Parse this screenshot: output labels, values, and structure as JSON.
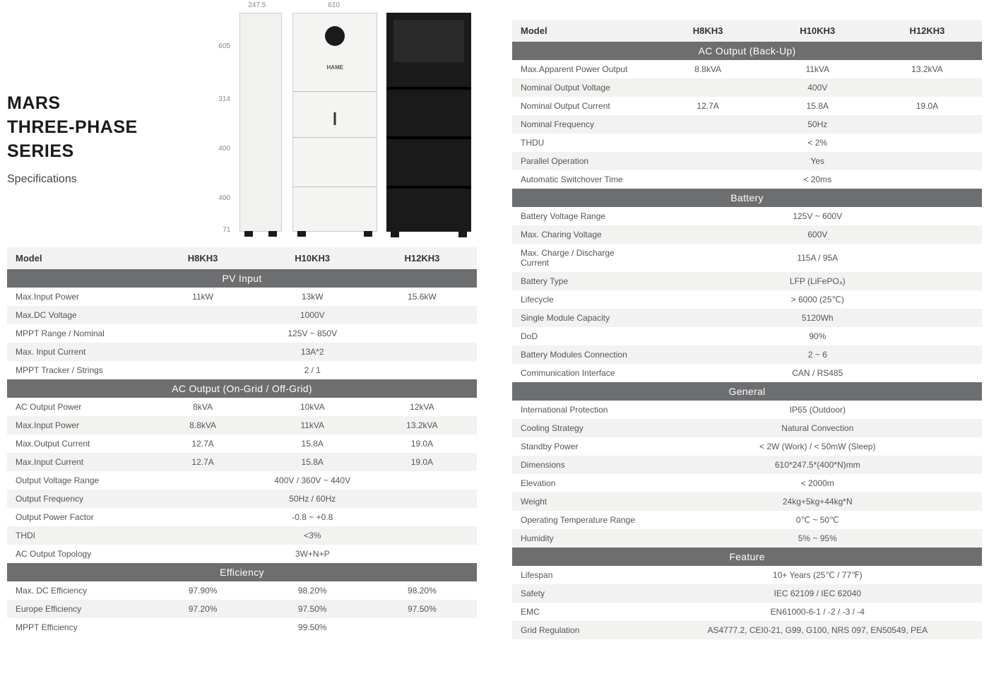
{
  "title": {
    "line1": "MARS",
    "line2": "THREE-PHASE SERIES",
    "sub": "Specifications"
  },
  "dimensions": {
    "width_side": "247.5",
    "width_front": "610",
    "h1": "605",
    "h2": "314",
    "h3": "400",
    "h4": "400",
    "h5": "71"
  },
  "models": [
    "H8KH3",
    "H10KH3",
    "H12KH3"
  ],
  "colors": {
    "section_bg": "#6d6e70",
    "alt_row": "#f2f2f1",
    "text": "#555555"
  },
  "table_left": {
    "sections": [
      {
        "title": "PV Input",
        "rows": [
          {
            "label": "Max.Input Power",
            "v": [
              "11kW",
              "13kW",
              "15.6kW"
            ],
            "alt": false
          },
          {
            "label": "Max.DC Voltage",
            "span": "1000V",
            "alt": true
          },
          {
            "label": "MPPT Range / Nominal",
            "span": "125V ~ 850V",
            "alt": false
          },
          {
            "label": "Max. Input Current",
            "span": "13A*2",
            "alt": true
          },
          {
            "label": "MPPT Tracker / Strings",
            "span": "2 / 1",
            "alt": false
          }
        ]
      },
      {
        "title": "AC Output (On-Grid / Off-Grid)",
        "rows": [
          {
            "label": "AC Output Power",
            "v": [
              "8kVA",
              "10kVA",
              "12kVA"
            ],
            "alt": false
          },
          {
            "label": "Max.Input Power",
            "v": [
              "8.8kVA",
              "11kVA",
              "13.2kVA"
            ],
            "alt": true
          },
          {
            "label": "Max.Output Current",
            "v": [
              "12.7A",
              "15.8A",
              "19.0A"
            ],
            "alt": false
          },
          {
            "label": "Max.Input Current",
            "v": [
              "12.7A",
              "15.8A",
              "19.0A"
            ],
            "alt": true
          },
          {
            "label": "Output Voltage Range",
            "span": "400V / 360V ~ 440V",
            "alt": false
          },
          {
            "label": "Output Frequency",
            "span": "50Hz / 60Hz",
            "alt": true
          },
          {
            "label": "Output Power Factor",
            "span": "-0.8 ~ +0.8",
            "alt": false
          },
          {
            "label": "THDI",
            "span": "<3%",
            "alt": true
          },
          {
            "label": "AC Output Topology",
            "span": "3W+N+P",
            "alt": false
          }
        ]
      },
      {
        "title": "Efficiency",
        "rows": [
          {
            "label": "Max. DC Efficiency",
            "v": [
              "97.90%",
              "98.20%",
              "98.20%"
            ],
            "alt": false
          },
          {
            "label": "Europe Efficiency",
            "v": [
              "97.20%",
              "97.50%",
              "97.50%"
            ],
            "alt": true
          },
          {
            "label": "MPPT Efficiency",
            "span": "99.50%",
            "alt": false
          }
        ]
      }
    ]
  },
  "table_right": {
    "sections": [
      {
        "title": "AC Output (Back-Up)",
        "rows": [
          {
            "label": "Max.Apparent Power Output",
            "v": [
              "8.8kVA",
              "11kVA",
              "13.2kVA"
            ],
            "alt": false
          },
          {
            "label": "Nominal Output Voltage",
            "span": "400V",
            "alt": true
          },
          {
            "label": "Nominal Output Current",
            "v": [
              "12.7A",
              "15.8A",
              "19.0A"
            ],
            "alt": false
          },
          {
            "label": "Nominal Frequency",
            "span": "50Hz",
            "alt": true
          },
          {
            "label": "THDU",
            "span": "< 2%",
            "alt": false
          },
          {
            "label": "Parallel Operation",
            "span": "Yes",
            "alt": true
          },
          {
            "label": "Automatic Switchover Time",
            "span": "< 20ms",
            "alt": false
          }
        ]
      },
      {
        "title": "Battery",
        "rows": [
          {
            "label": "Battery Voltage Range",
            "span": "125V ~ 600V",
            "alt": false
          },
          {
            "label": "Max. Charing Voltage",
            "span": "600V",
            "alt": true
          },
          {
            "label": "Max. Charge / Discharge Current",
            "span": "115A / 95A",
            "alt": false
          },
          {
            "label": "Battery Type",
            "span": "LFP (LiFePO₄)",
            "alt": true
          },
          {
            "label": "Lifecycle",
            "span": "> 6000 (25℃)",
            "alt": false
          },
          {
            "label": "Single Module Capacity",
            "span": "5120Wh",
            "alt": true
          },
          {
            "label": "DoD",
            "span": "90%",
            "alt": false
          },
          {
            "label": "Battery Modules Connection",
            "span": "2 ~ 6",
            "alt": true
          },
          {
            "label": "Communication Interface",
            "span": "CAN / RS485",
            "alt": false
          }
        ]
      },
      {
        "title": "General",
        "rows": [
          {
            "label": "International Protection",
            "span": "IP65 (Outdoor)",
            "alt": false
          },
          {
            "label": "Cooling Strategy",
            "span": "Natural Convection",
            "alt": true
          },
          {
            "label": "Standby Power",
            "span": "< 2W (Work) /  < 50mW (Sleep)",
            "alt": false
          },
          {
            "label": "Dimensions",
            "span": "610*247.5*(400*N)mm",
            "alt": true
          },
          {
            "label": "Elevation",
            "span": "< 2000m",
            "alt": false
          },
          {
            "label": "Weight",
            "span": "24kg+5kg+44kg*N",
            "alt": true
          },
          {
            "label": "Operating Temperature Range",
            "span": "0℃ ~ 50℃",
            "alt": false
          },
          {
            "label": "Humidity",
            "span": "5% ~ 95%",
            "alt": true
          }
        ]
      },
      {
        "title": "Feature",
        "rows": [
          {
            "label": "Lifespan",
            "span": "10+ Years (25℃ / 77℉)",
            "alt": false
          },
          {
            "label": "Safety",
            "span": "IEC 62109 / IEC 62040",
            "alt": true
          },
          {
            "label": "EMC",
            "span": "EN61000-6-1 / -2 / -3 / -4",
            "alt": false
          },
          {
            "label": "Grid Regulation",
            "span": "AS4777.2, CEI0-21, G99, G100, NRS 097, EN50549, PEA",
            "alt": true
          }
        ]
      }
    ]
  }
}
